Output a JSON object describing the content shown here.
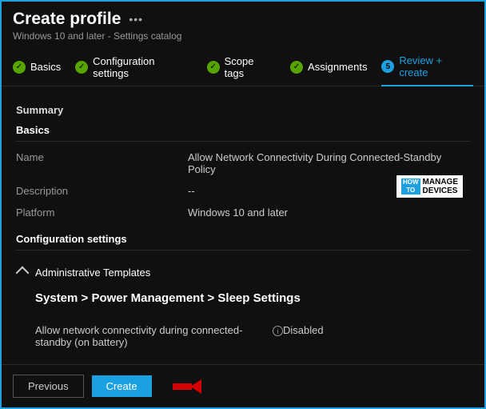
{
  "header": {
    "title": "Create profile",
    "subtitle": "Windows 10 and later - Settings catalog"
  },
  "steps": [
    {
      "label": "Basics",
      "state": "done"
    },
    {
      "label": "Configuration settings",
      "state": "done"
    },
    {
      "label": "Scope tags",
      "state": "done"
    },
    {
      "label": "Assignments",
      "state": "done"
    },
    {
      "label": "Review + create",
      "state": "active",
      "num": "5"
    }
  ],
  "summary": {
    "heading": "Summary",
    "basics_heading": "Basics",
    "rows": [
      {
        "key": "Name",
        "val": "Allow Network Connectivity During Connected-Standby Policy"
      },
      {
        "key": "Description",
        "val": "--"
      },
      {
        "key": "Platform",
        "val": "Windows 10 and later"
      }
    ]
  },
  "config": {
    "heading": "Configuration settings",
    "group": "Administrative Templates",
    "breadcrumb": "System > Power Management > Sleep Settings",
    "setting": {
      "name": "Allow network connectivity during connected-standby (on battery)",
      "value": "Disabled"
    }
  },
  "footer": {
    "previous": "Previous",
    "create": "Create"
  },
  "watermark": {
    "line1": "MANAGE",
    "line2": "DEVICES",
    "badge1": "HOW",
    "badge2": "TO"
  }
}
